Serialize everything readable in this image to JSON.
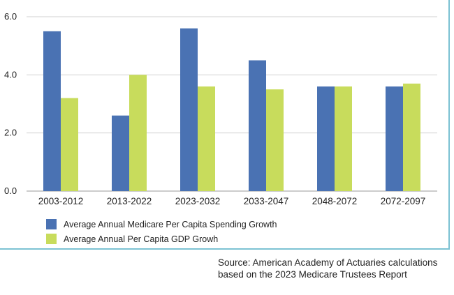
{
  "chart_data": {
    "type": "bar",
    "categories": [
      "2003-2012",
      "2013-2022",
      "2023-2032",
      "2033-2047",
      "2048-2072",
      "2072-2097"
    ],
    "series": [
      {
        "name": "Average Annual Medicare Per Capita Spending Growth",
        "values": [
          5.5,
          2.6,
          5.6,
          4.5,
          3.6,
          3.6
        ],
        "color": "#4a72b3"
      },
      {
        "name": "Average Annual Per Capita GDP Growh",
        "values": [
          3.2,
          4.0,
          3.6,
          3.5,
          3.6,
          3.7
        ],
        "color": "#c8dc5c"
      }
    ],
    "ylim": [
      0,
      6
    ],
    "yticks": [
      "0.0",
      "2.0",
      "4.0",
      "6.0"
    ],
    "ytick_values": [
      0,
      2,
      4,
      6
    ],
    "grid": true,
    "legend_position": "bottom-left"
  },
  "source": {
    "line1": "Source: American Academy of Actuaries calculations",
    "line2": "based on the 2023 Medicare Trustees Report"
  }
}
